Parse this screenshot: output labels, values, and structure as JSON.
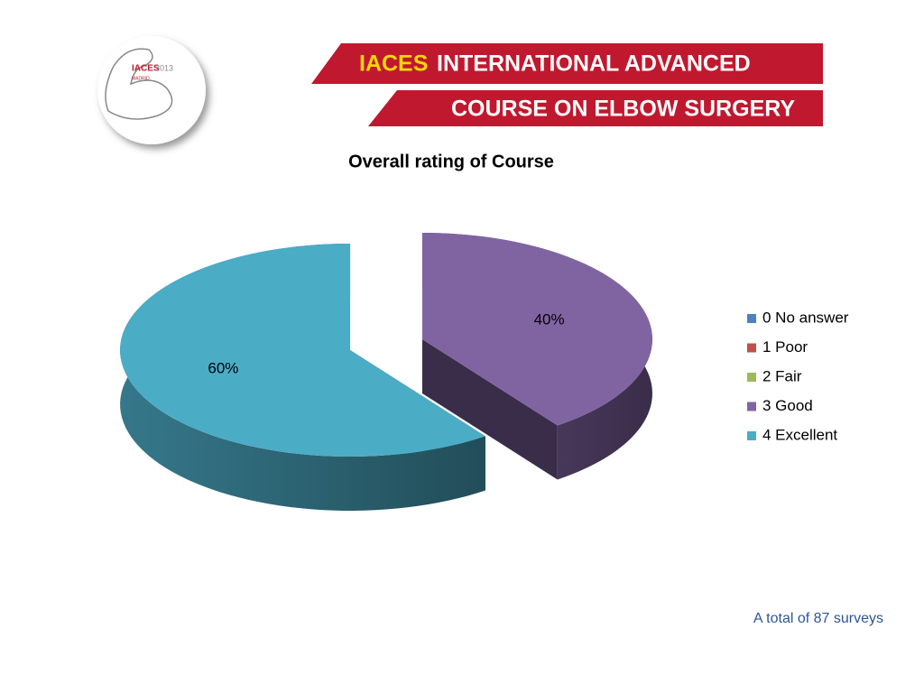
{
  "header": {
    "logo_title": "IACES",
    "logo_year": "2013",
    "logo_city": "MADRID",
    "banner_brand": "IACES",
    "banner_line1": "INTERNATIONAL ADVANCED",
    "banner_line2": "COURSE ON ELBOW SURGERY"
  },
  "chart_data": {
    "type": "pie",
    "title": "Overall rating of Course",
    "categories": [
      "0 No answer",
      "1 Poor",
      "2 Fair",
      "3 Good",
      "4 Excellent"
    ],
    "values": [
      0,
      0,
      0,
      40,
      60
    ],
    "value_labels": [
      null,
      null,
      null,
      "40%",
      "60%"
    ],
    "colors": [
      "#4f81bd",
      "#c0504d",
      "#9bbb59",
      "#8064a2",
      "#4bacc6"
    ],
    "legend": "right"
  },
  "note": "A total of 87 surveys"
}
